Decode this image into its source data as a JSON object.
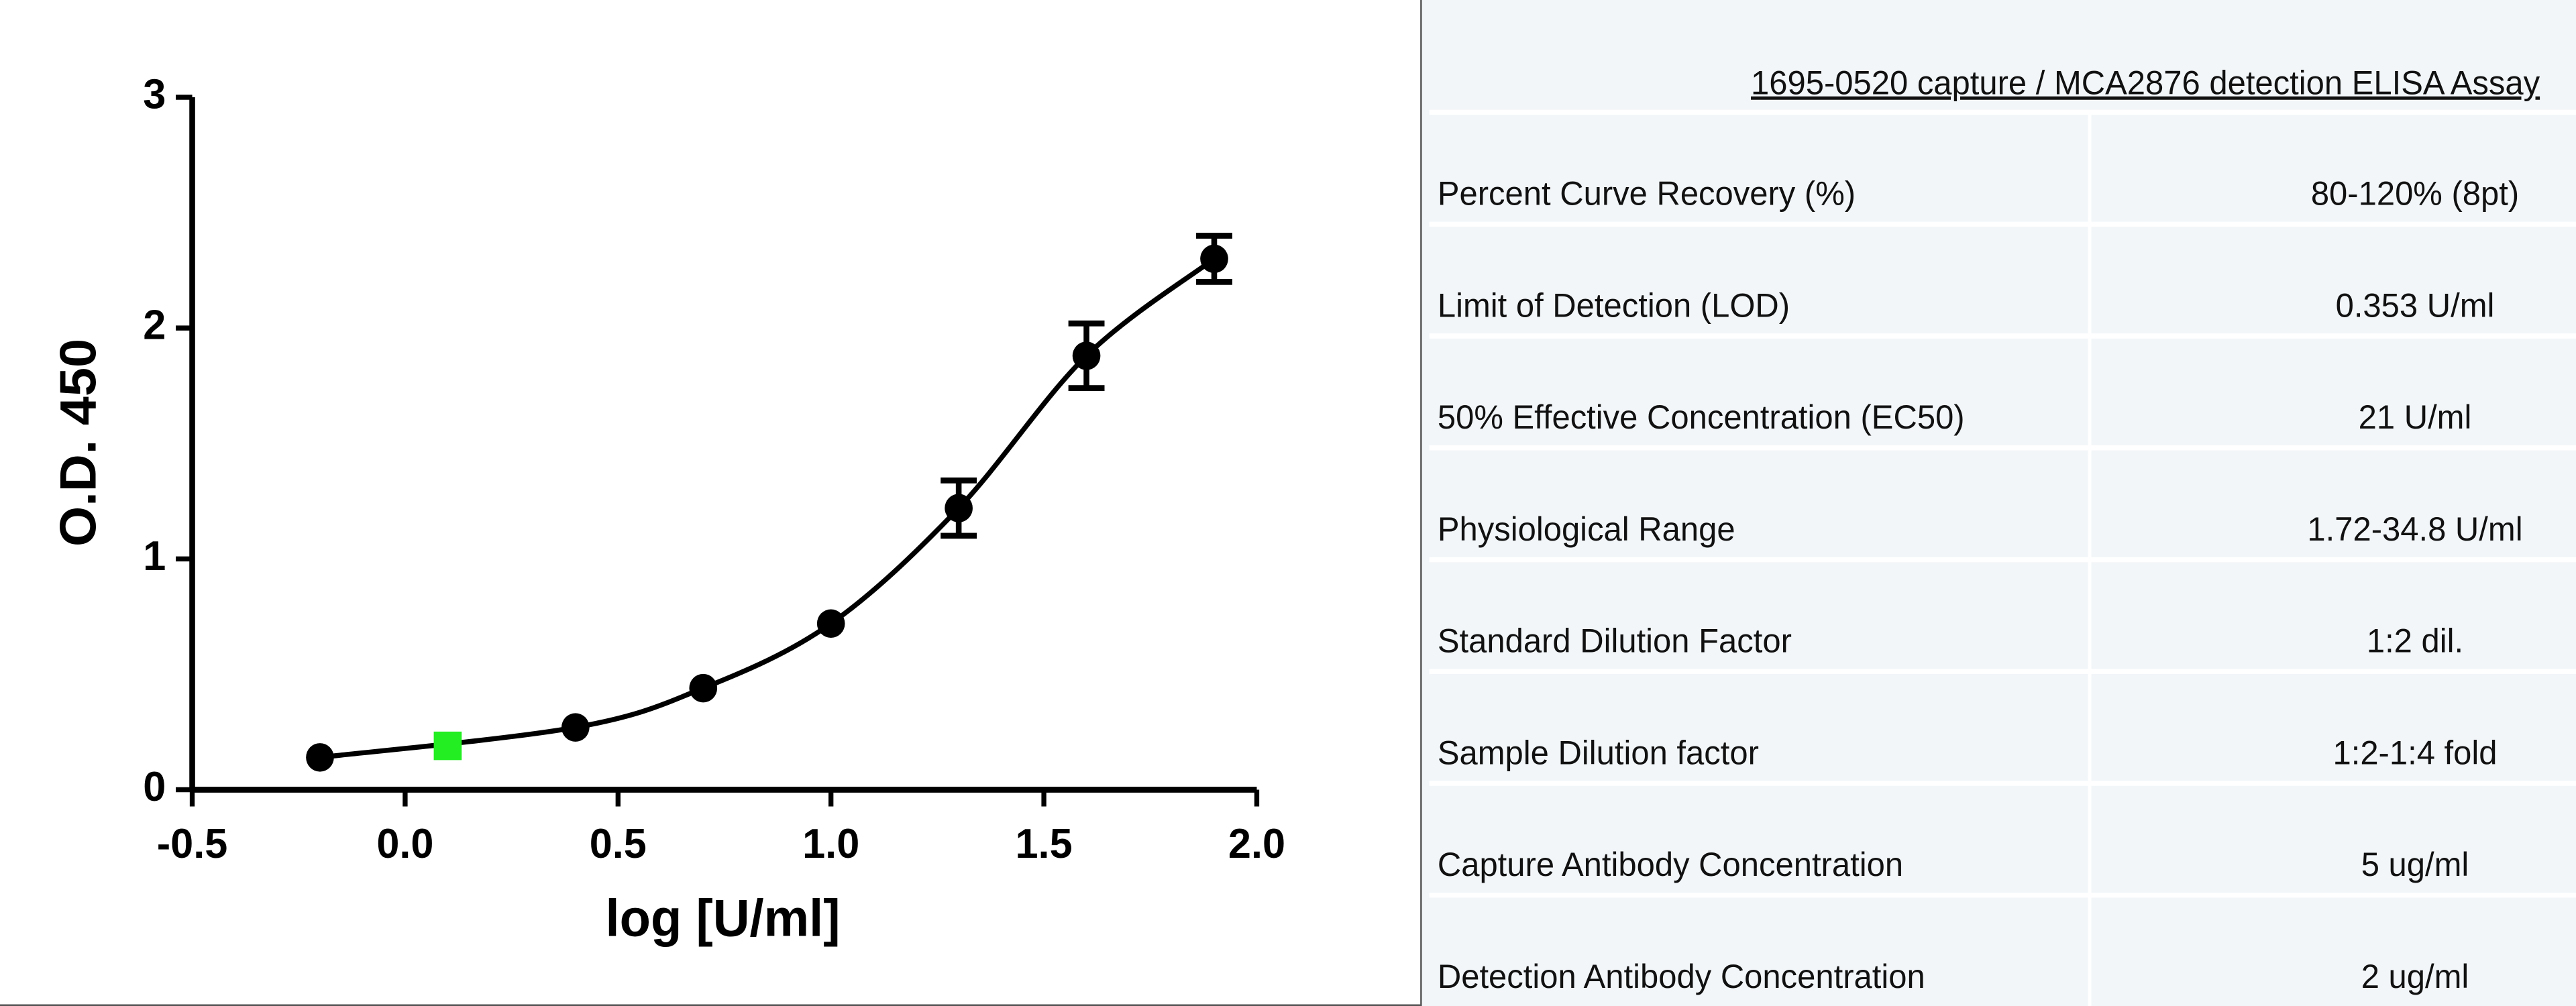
{
  "chart_data": {
    "type": "scatter",
    "x_label": "log [U/ml]",
    "y_label": "O.D. 450",
    "xlim": [
      -0.5,
      2.0
    ],
    "xticks": [
      -0.5,
      {
        "value": 0,
        "label": "0.0"
      },
      0.5,
      {
        "value": 1,
        "label": "1.0"
      },
      1.5,
      {
        "value": 2,
        "label": "2.0"
      }
    ],
    "ylim": [
      0,
      3
    ],
    "yticks": [
      0,
      1,
      2,
      3
    ],
    "fit_curve": true,
    "series": [
      {
        "color": "#000000",
        "marker": "circle",
        "x": [
          -0.2,
          0.4,
          0.7,
          1.0,
          1.3,
          1.6,
          1.9
        ],
        "values": [
          0.14,
          0.27,
          0.44,
          0.72,
          1.22,
          1.88,
          2.3
        ],
        "errors": [
          null,
          null,
          null,
          null,
          0.12,
          0.14,
          0.1
        ]
      },
      {
        "color": "#22ee22",
        "marker": "square",
        "x": [
          0.1
        ],
        "values": [
          0.19
        ],
        "errors": [
          null
        ]
      }
    ]
  },
  "table": {
    "title": "1695-0520 capture / MCA2876 detection ELISA Assay",
    "rows": [
      [
        "Percent Curve Recovery (%)",
        "80-120% (8pt)"
      ],
      [
        "Limit of Detection (LOD)",
        "0.353 U/ml"
      ],
      [
        "50% Effective Concentration (EC50)",
        "21 U/ml"
      ],
      [
        "Physiological Range",
        "1.72-34.8 U/ml"
      ],
      [
        "Standard Dilution Factor",
        "1:2 dil."
      ],
      [
        "Sample Dilution factor",
        "1:2-1:4 fold"
      ],
      [
        "Capture Antibody Concentration",
        "5 ug/ml"
      ],
      [
        "Detection Antibody Concentration",
        "2 ug/ml"
      ]
    ]
  }
}
